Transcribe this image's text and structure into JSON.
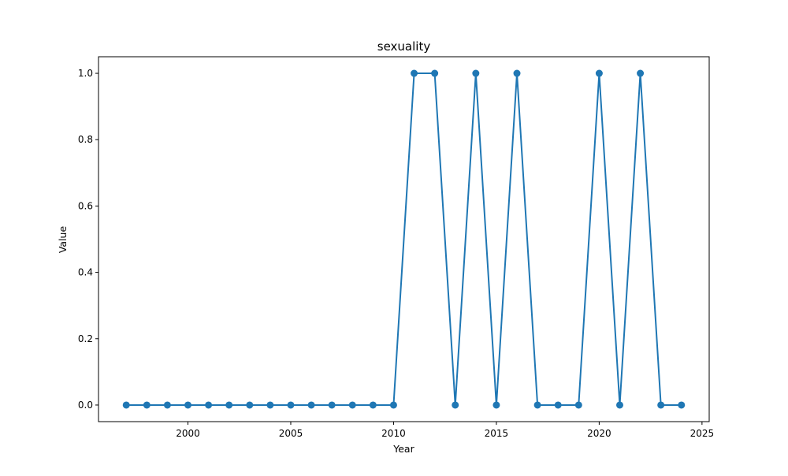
{
  "chart_data": {
    "type": "line",
    "title": "sexuality",
    "xlabel": "Year",
    "ylabel": "Value",
    "x": [
      1997,
      1998,
      1999,
      2000,
      2001,
      2002,
      2003,
      2004,
      2005,
      2006,
      2007,
      2008,
      2009,
      2010,
      2011,
      2012,
      2013,
      2014,
      2015,
      2016,
      2017,
      2018,
      2019,
      2020,
      2021,
      2022,
      2023,
      2024
    ],
    "series": [
      {
        "values": [
          0,
          0,
          0,
          0,
          0,
          0,
          0,
          0,
          0,
          0,
          0,
          0,
          0,
          0,
          1,
          1,
          0,
          1,
          0,
          1,
          0,
          0,
          0,
          1,
          0,
          1,
          0,
          0
        ],
        "color": "#1f77b4",
        "marker": "circle"
      }
    ],
    "xlim": [
      1995.65,
      2025.35
    ],
    "ylim": [
      -0.05,
      1.05
    ],
    "xticks": [
      2000,
      2005,
      2010,
      2015,
      2020,
      2025
    ],
    "xtick_labels": [
      "2000",
      "2005",
      "2010",
      "2015",
      "2020",
      "2025"
    ],
    "yticks": [
      0.0,
      0.2,
      0.4,
      0.6,
      0.8,
      1.0
    ],
    "ytick_labels": [
      "0.0",
      "0.2",
      "0.4",
      "0.6",
      "0.8",
      "1.0"
    ],
    "grid": false,
    "legend": "none"
  }
}
